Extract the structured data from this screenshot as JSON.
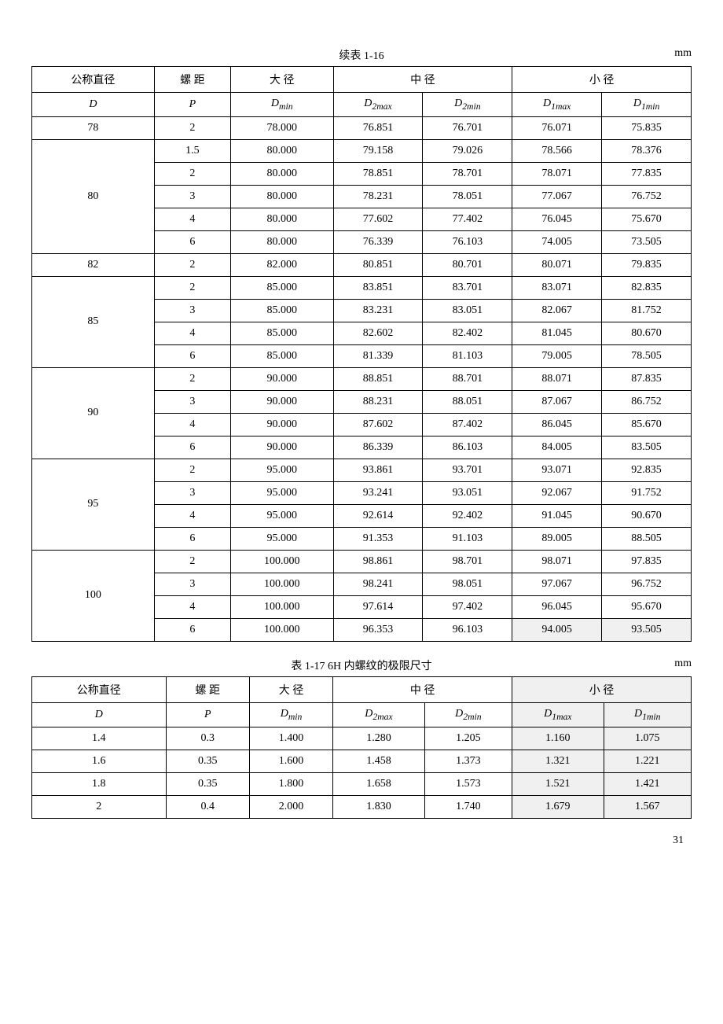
{
  "table1": {
    "caption": "续表 1-16",
    "unit": "mm",
    "headers": {
      "col1": "公称直径",
      "col1_sub": "D",
      "col2": "螺 距",
      "col2_sub": "P",
      "col3": "大 径",
      "col3_sub": "D",
      "col3_sub_suffix": "min",
      "col4": "中    径",
      "col4_sub1": "D",
      "col4_sub1_suffix": "2max",
      "col4_sub2": "D",
      "col4_sub2_suffix": "2min",
      "col5": "小    径",
      "col5_sub1": "D",
      "col5_sub1_suffix": "1max",
      "col5_sub2": "D",
      "col5_sub2_suffix": "1min"
    },
    "rows": [
      {
        "d": "78",
        "p": "2",
        "dmin": "78.000",
        "d2max": "76.851",
        "d2min": "76.701",
        "d1max": "76.071",
        "d1min": "75.835",
        "rowspan": 1
      },
      {
        "d": "80",
        "p": "1.5",
        "dmin": "80.000",
        "d2max": "79.158",
        "d2min": "79.026",
        "d1max": "78.566",
        "d1min": "78.376",
        "rowspan": 5
      },
      {
        "d": "",
        "p": "2",
        "dmin": "80.000",
        "d2max": "78.851",
        "d2min": "78.701",
        "d1max": "78.071",
        "d1min": "77.835"
      },
      {
        "d": "",
        "p": "3",
        "dmin": "80.000",
        "d2max": "78.231",
        "d2min": "78.051",
        "d1max": "77.067",
        "d1min": "76.752"
      },
      {
        "d": "",
        "p": "4",
        "dmin": "80.000",
        "d2max": "77.602",
        "d2min": "77.402",
        "d1max": "76.045",
        "d1min": "75.670"
      },
      {
        "d": "",
        "p": "6",
        "dmin": "80.000",
        "d2max": "76.339",
        "d2min": "76.103",
        "d1max": "74.005",
        "d1min": "73.505"
      },
      {
        "d": "82",
        "p": "2",
        "dmin": "82.000",
        "d2max": "80.851",
        "d2min": "80.701",
        "d1max": "80.071",
        "d1min": "79.835",
        "rowspan": 1
      },
      {
        "d": "85",
        "p": "2",
        "dmin": "85.000",
        "d2max": "83.851",
        "d2min": "83.701",
        "d1max": "83.071",
        "d1min": "82.835",
        "rowspan": 4
      },
      {
        "d": "",
        "p": "3",
        "dmin": "85.000",
        "d2max": "83.231",
        "d2min": "83.051",
        "d1max": "82.067",
        "d1min": "81.752"
      },
      {
        "d": "",
        "p": "4",
        "dmin": "85.000",
        "d2max": "82.602",
        "d2min": "82.402",
        "d1max": "81.045",
        "d1min": "80.670"
      },
      {
        "d": "",
        "p": "6",
        "dmin": "85.000",
        "d2max": "81.339",
        "d2min": "81.103",
        "d1max": "79.005",
        "d1min": "78.505"
      },
      {
        "d": "90",
        "p": "2",
        "dmin": "90.000",
        "d2max": "88.851",
        "d2min": "88.701",
        "d1max": "88.071",
        "d1min": "87.835",
        "rowspan": 4
      },
      {
        "d": "",
        "p": "3",
        "dmin": "90.000",
        "d2max": "88.231",
        "d2min": "88.051",
        "d1max": "87.067",
        "d1min": "86.752"
      },
      {
        "d": "",
        "p": "4",
        "dmin": "90.000",
        "d2max": "87.602",
        "d2min": "87.402",
        "d1max": "86.045",
        "d1min": "85.670"
      },
      {
        "d": "",
        "p": "6",
        "dmin": "90.000",
        "d2max": "86.339",
        "d2min": "86.103",
        "d1max": "84.005",
        "d1min": "83.505"
      },
      {
        "d": "95",
        "p": "2",
        "dmin": "95.000",
        "d2max": "93.861",
        "d2min": "93.701",
        "d1max": "93.071",
        "d1min": "92.835",
        "rowspan": 4
      },
      {
        "d": "",
        "p": "3",
        "dmin": "95.000",
        "d2max": "93.241",
        "d2min": "93.051",
        "d1max": "92.067",
        "d1min": "91.752"
      },
      {
        "d": "",
        "p": "4",
        "dmin": "95.000",
        "d2max": "92.614",
        "d2min": "92.402",
        "d1max": "91.045",
        "d1min": "90.670"
      },
      {
        "d": "",
        "p": "6",
        "dmin": "95.000",
        "d2max": "91.353",
        "d2min": "91.103",
        "d1max": "89.005",
        "d1min": "88.505"
      },
      {
        "d": "100",
        "p": "2",
        "dmin": "100.000",
        "d2max": "98.861",
        "d2min": "98.701",
        "d1max": "98.071",
        "d1min": "97.835",
        "rowspan": 4
      },
      {
        "d": "",
        "p": "3",
        "dmin": "100.000",
        "d2max": "98.241",
        "d2min": "98.051",
        "d1max": "97.067",
        "d1min": "96.752"
      },
      {
        "d": "",
        "p": "4",
        "dmin": "100.000",
        "d2max": "97.614",
        "d2min": "97.402",
        "d1max": "96.045",
        "d1min": "95.670"
      },
      {
        "d": "",
        "p": "6",
        "dmin": "100.000",
        "d2max": "96.353",
        "d2min": "96.103",
        "d1max": "94.005",
        "d1min": "93.505",
        "shaded": true
      }
    ]
  },
  "table2": {
    "caption": "表 1-17  6H 内螺纹的极限尺寸",
    "unit": "mm",
    "headers": {
      "col1": "公称直径",
      "col1_sub": "D",
      "col2": "螺 距",
      "col2_sub": "P",
      "col3": "大 径",
      "col3_sub": "D",
      "col3_sub_suffix": "min",
      "col4": "中    径",
      "col4_sub1": "D",
      "col4_sub1_suffix": "2max",
      "col4_sub2": "D",
      "col4_sub2_suffix": "2min",
      "col5": "小    径",
      "col5_sub1": "D",
      "col5_sub1_suffix": "1max",
      "col5_sub2": "D",
      "col5_sub2_suffix": "1min"
    },
    "rows": [
      {
        "d": "1.4",
        "p": "0.3",
        "dmin": "1.400",
        "d2max": "1.280",
        "d2min": "1.205",
        "d1max": "1.160",
        "d1min": "1.075"
      },
      {
        "d": "1.6",
        "p": "0.35",
        "dmin": "1.600",
        "d2max": "1.458",
        "d2min": "1.373",
        "d1max": "1.321",
        "d1min": "1.221"
      },
      {
        "d": "1.8",
        "p": "0.35",
        "dmin": "1.800",
        "d2max": "1.658",
        "d2min": "1.573",
        "d1max": "1.521",
        "d1min": "1.421"
      },
      {
        "d": "2",
        "p": "0.4",
        "dmin": "2.000",
        "d2max": "1.830",
        "d2min": "1.740",
        "d1max": "1.679",
        "d1min": "1.567"
      }
    ]
  },
  "page_number": "31"
}
